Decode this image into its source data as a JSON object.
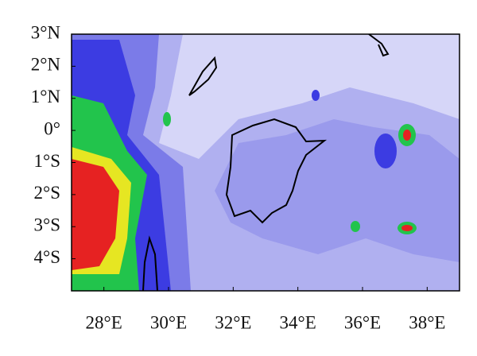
{
  "chart_data": {
    "type": "map",
    "xlim": [
      27,
      39
    ],
    "ylim": [
      -5,
      3
    ],
    "xticks": [
      {
        "value": 28,
        "label": "28°E"
      },
      {
        "value": 30,
        "label": "30°E"
      },
      {
        "value": 32,
        "label": "32°E"
      },
      {
        "value": 34,
        "label": "34°E"
      },
      {
        "value": 36,
        "label": "36°E"
      },
      {
        "value": 38,
        "label": "38°E"
      }
    ],
    "yticks": [
      {
        "value": 3,
        "label": "3°N"
      },
      {
        "value": 2,
        "label": "2°N"
      },
      {
        "value": 1,
        "label": "1°N"
      },
      {
        "value": 0,
        "label": "0°"
      },
      {
        "value": -1,
        "label": "1°S"
      },
      {
        "value": -2,
        "label": "2°S"
      },
      {
        "value": -3,
        "label": "3°S"
      },
      {
        "value": -4,
        "label": "4°S"
      }
    ]
  }
}
